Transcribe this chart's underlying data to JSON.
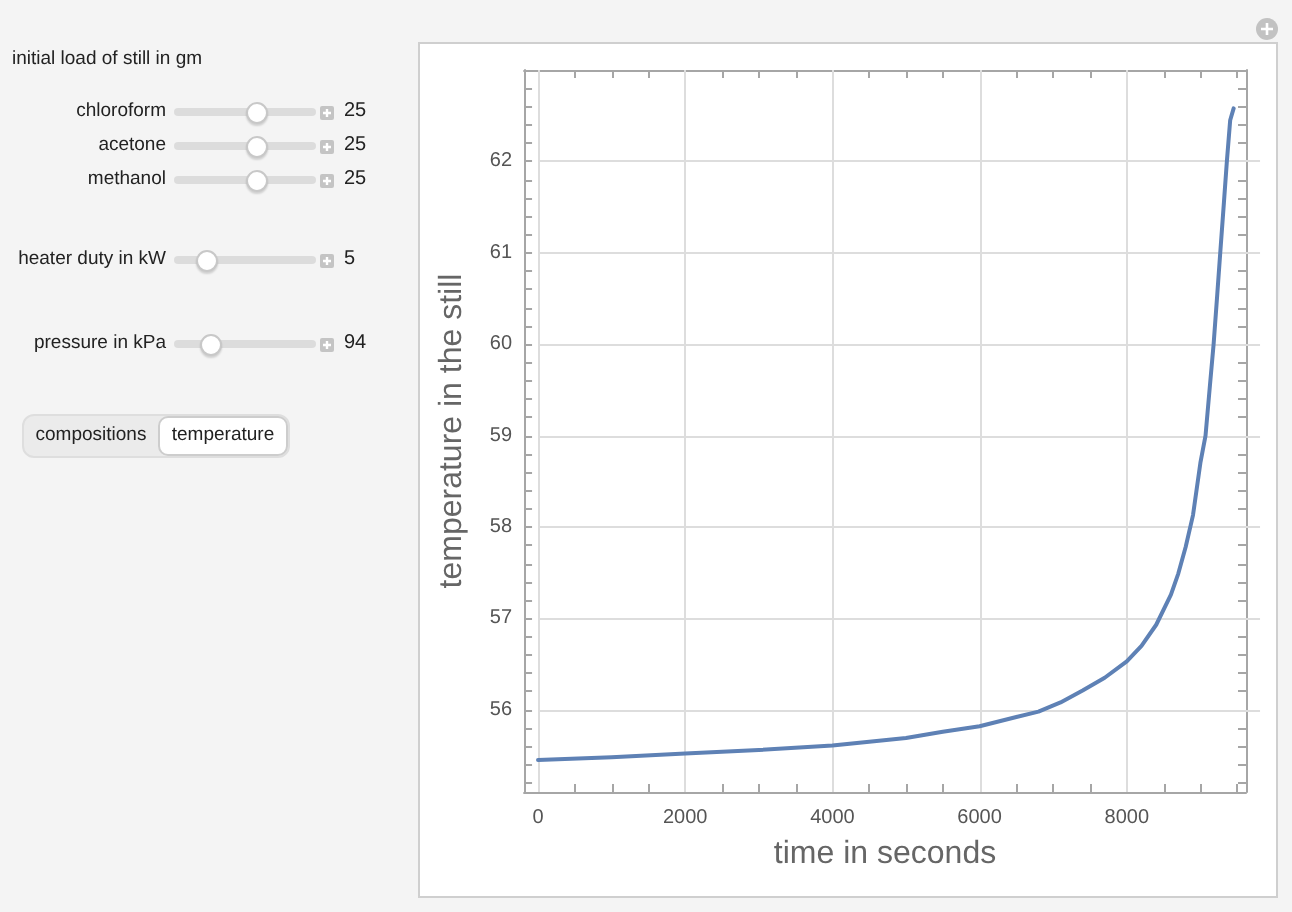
{
  "chart_data": {
    "type": "line",
    "xlabel": "time in seconds",
    "ylabel": "temperature in the still",
    "annotations": [
      "initial load of still in gm",
      "chloroform",
      "25",
      "acetone",
      "25",
      "methanol",
      "25",
      "heater duty in kW",
      "5",
      "pressure in kPa",
      "94",
      "compositions",
      "temperature"
    ],
    "x": [
      0,
      1000,
      2000,
      3000,
      4000,
      5000,
      5500,
      6000,
      6500,
      6800,
      7100,
      7400,
      7700,
      8000,
      8200,
      8400,
      8600,
      8700,
      8800,
      8900,
      9000,
      9070,
      9130,
      9180,
      9230,
      9270,
      9320,
      9360,
      9405,
      9452
    ],
    "series": [
      {
        "color": "#5e81b5",
        "values": [
          55.45,
          55.48,
          55.52,
          55.56,
          55.61,
          55.69,
          55.76,
          55.82,
          55.92,
          55.98,
          56.08,
          56.21,
          56.35,
          56.53,
          56.7,
          56.93,
          57.26,
          57.49,
          57.78,
          58.13,
          58.7,
          59.0,
          59.55,
          60.0,
          60.55,
          61.0,
          61.55,
          62.0,
          62.45,
          62.58
        ]
      }
    ],
    "xlim": [
      -190,
      9620
    ],
    "ylim": [
      55.1,
      63.0
    ],
    "xticks": [
      0,
      {
        "value": 500,
        "label": null
      },
      {
        "value": 1000,
        "label": null
      },
      {
        "value": 1500,
        "label": null
      },
      2000,
      {
        "value": 2500,
        "label": null
      },
      {
        "value": 3000,
        "label": null
      },
      {
        "value": 3500,
        "label": null
      },
      4000,
      {
        "value": 4500,
        "label": null
      },
      {
        "value": 5000,
        "label": null
      },
      {
        "value": 5500,
        "label": null
      },
      6000,
      {
        "value": 6500,
        "label": null
      },
      {
        "value": 7000,
        "label": null
      },
      {
        "value": 7500,
        "label": null
      },
      8000,
      {
        "value": 8500,
        "label": null
      },
      {
        "value": 9000,
        "label": null
      },
      {
        "value": 9500,
        "label": null
      }
    ],
    "yticks": [
      {
        "value": 55.2,
        "label": null
      },
      {
        "value": 55.4,
        "label": null
      },
      {
        "value": 55.6,
        "label": null
      },
      {
        "value": 55.8,
        "label": null
      },
      56,
      {
        "value": 56.2,
        "label": null
      },
      {
        "value": 56.4,
        "label": null
      },
      {
        "value": 56.6,
        "label": null
      },
      {
        "value": 56.8,
        "label": null
      },
      57,
      {
        "value": 57.2,
        "label": null
      },
      {
        "value": 57.4,
        "label": null
      },
      {
        "value": 57.6,
        "label": null
      },
      {
        "value": 57.8,
        "label": null
      },
      58,
      {
        "value": 58.2,
        "label": null
      },
      {
        "value": 58.4,
        "label": null
      },
      {
        "value": 58.6,
        "label": null
      },
      {
        "value": 58.8,
        "label": null
      },
      59,
      {
        "value": 59.2,
        "label": null
      },
      {
        "value": 59.4,
        "label": null
      },
      {
        "value": 59.6,
        "label": null
      },
      {
        "value": 59.8,
        "label": null
      },
      60,
      {
        "value": 60.2,
        "label": null
      },
      {
        "value": 60.4,
        "label": null
      },
      {
        "value": 60.6,
        "label": null
      },
      {
        "value": 60.8,
        "label": null
      },
      61,
      {
        "value": 61.2,
        "label": null
      },
      {
        "value": 61.4,
        "label": null
      },
      {
        "value": 61.6,
        "label": null
      },
      {
        "value": 61.8,
        "label": null
      },
      62,
      {
        "value": 62.2,
        "label": null
      },
      {
        "value": 62.4,
        "label": null
      },
      {
        "value": 62.6,
        "label": null
      },
      {
        "value": 62.8,
        "label": null
      }
    ],
    "grid": true
  }
}
